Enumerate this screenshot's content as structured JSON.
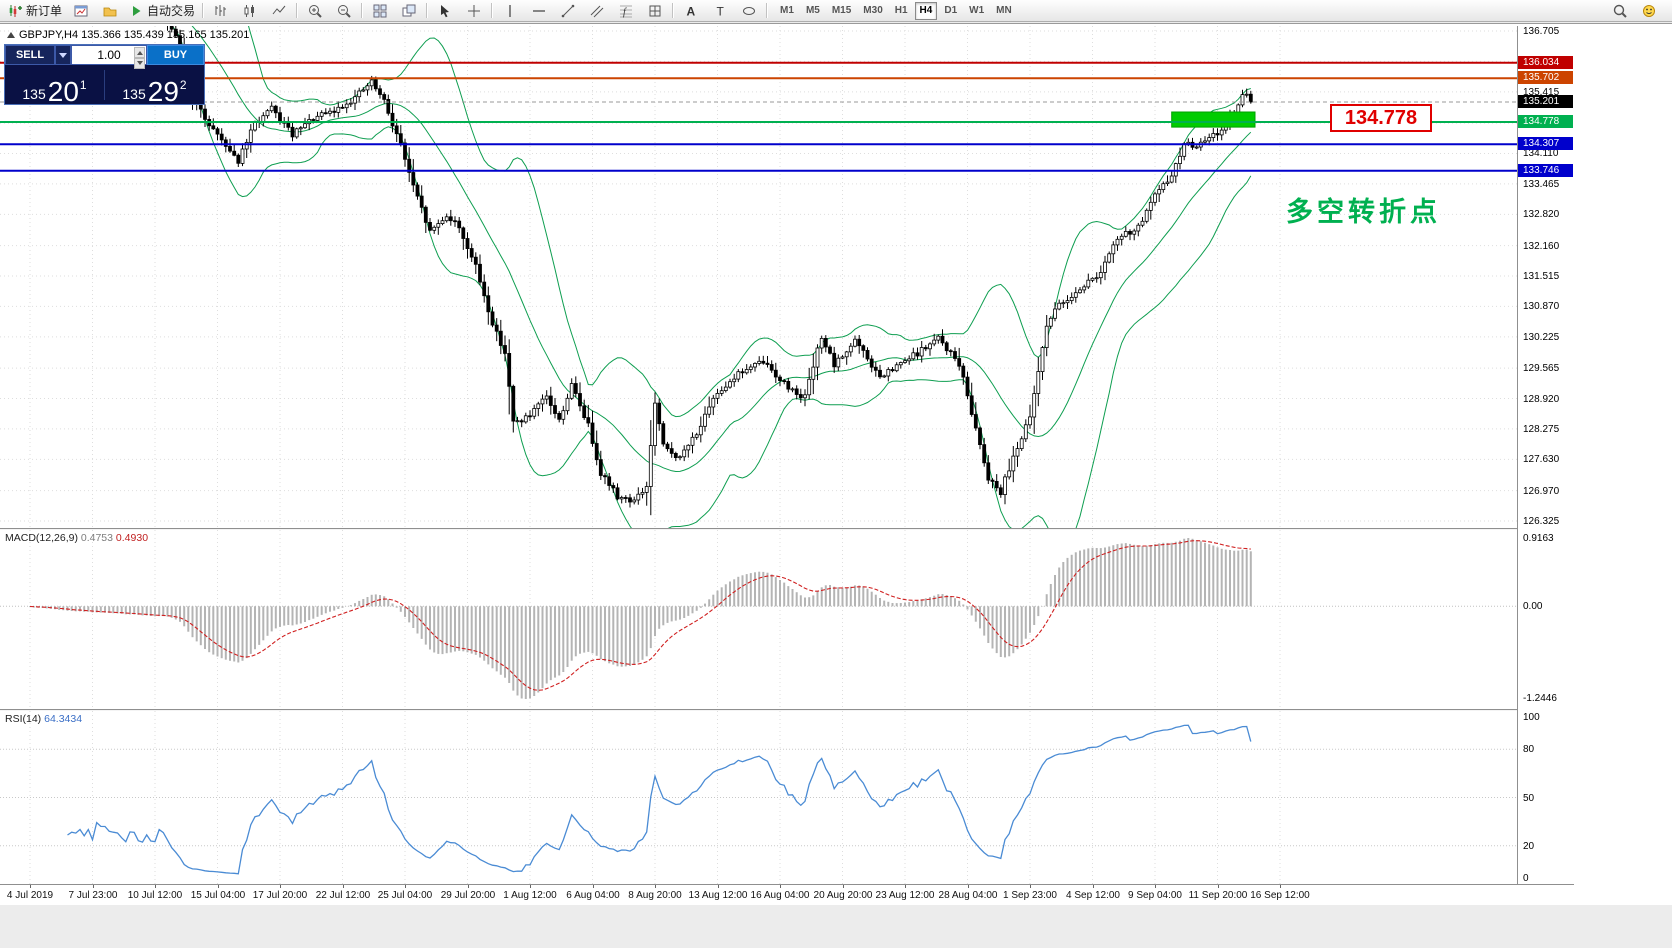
{
  "toolbar": {
    "items": [
      {
        "icon": "new-order",
        "label": "新订单",
        "name": "new-order-button"
      },
      {
        "icon": "chart-window",
        "name": "new-chart-button"
      },
      {
        "icon": "profile",
        "name": "profiles-button"
      },
      {
        "icon": "auto-trading",
        "label": "自动交易",
        "name": "auto-trading-button"
      },
      {
        "sep": true
      },
      {
        "icon": "bar-chart",
        "name": "bar-chart-button"
      },
      {
        "icon": "candle-chart",
        "name": "candlestick-chart-button"
      },
      {
        "icon": "line-chart",
        "name": "line-chart-button"
      },
      {
        "sep": true
      },
      {
        "icon": "zoom-in",
        "name": "zoom-in-button"
      },
      {
        "icon": "zoom-out",
        "name": "zoom-out-button"
      },
      {
        "sep": true
      },
      {
        "icon": "tile-windows",
        "name": "tile-windows-button"
      },
      {
        "icon": "arrange",
        "name": "cascade-windows-button"
      },
      {
        "sep": true
      },
      {
        "icon": "cursor",
        "name": "cursor-button"
      },
      {
        "icon": "crosshair",
        "name": "crosshair-button"
      },
      {
        "sep": true
      },
      {
        "icon": "vertical-line",
        "name": "vertical-line-button"
      },
      {
        "icon": "horizontal-line",
        "name": "horizontal-line-button"
      },
      {
        "icon": "trend-line",
        "name": "trendline-button"
      },
      {
        "icon": "channel",
        "name": "equidistant-channel-button"
      },
      {
        "icon": "fibonacci",
        "name": "fibonacci-button"
      },
      {
        "icon": "drawing-grid",
        "name": "drawing-tools-button"
      },
      {
        "sep": true
      },
      {
        "icon": "text",
        "name": "text-button"
      },
      {
        "icon": "text-label",
        "name": "text-label-button"
      },
      {
        "icon": "shapes",
        "name": "shapes-button"
      },
      {
        "sep": true
      }
    ],
    "timeframes": [
      "M1",
      "M5",
      "M15",
      "M30",
      "H1",
      "H4",
      "D1",
      "W1",
      "MN"
    ],
    "active_timeframe": "H4",
    "right_items": [
      {
        "icon": "search",
        "name": "search-button"
      },
      {
        "icon": "help-smiley",
        "name": "community-help-button"
      }
    ]
  },
  "trade_panel": {
    "sell_label": "SELL",
    "buy_label": "BUY",
    "volume": "1.00",
    "sell_price": {
      "main": "135",
      "pips": "20",
      "frac": "1"
    },
    "buy_price": {
      "main": "135",
      "pips": "29",
      "frac": "2"
    }
  },
  "chart": {
    "symbol_readout": "GBPJPY,H4  135.366 135.439 135.165 135.201",
    "annotation_price_label": "134.778",
    "annotation_text": "多空转折点",
    "colors": {
      "up_candle": "#ffffff",
      "down_candle": "#000000",
      "candle_stroke": "#000000",
      "bollinger": "#0e9e50",
      "macd_histogram": "#b4b4b4",
      "macd_signal": "#d02020",
      "rsi_line": "#4a8bd4",
      "grid": "#dedede",
      "highlight": "#00cc00",
      "annotation_green": "#00b050",
      "annotation_red": "#e00000",
      "current_price_tag": "#000000"
    }
  },
  "chart_data": {
    "type": "candlestick",
    "symbol": "GBPJPY",
    "timeframe": "H4",
    "ohlc": {
      "open": 135.366,
      "high": 135.439,
      "low": 135.165,
      "close": 135.201
    },
    "current_price": 135.201,
    "bars": 300,
    "y_axis": {
      "min": 126.325,
      "max": 136.705,
      "ticks": [
        136.705,
        135.415,
        134.11,
        133.465,
        132.82,
        132.16,
        131.515,
        130.87,
        130.225,
        129.565,
        128.92,
        128.275,
        127.63,
        126.97,
        126.325
      ],
      "hidden_grid": [
        136.06,
        134.755
      ]
    },
    "price_levels": [
      {
        "price": 136.034,
        "color": "#c00000"
      },
      {
        "price": 135.702,
        "color": "#cc4400"
      },
      {
        "price": 134.778,
        "color": "#00b050"
      },
      {
        "price": 134.307,
        "color": "#0000cc"
      },
      {
        "price": 133.746,
        "color": "#0000cc"
      }
    ],
    "highlight_rect": {
      "bar_start": 280,
      "bar_end": 300,
      "price_top": 134.99,
      "price_bottom": 134.67
    },
    "price_path": [
      [
        0,
        137.8
      ],
      [
        20,
        137.4
      ],
      [
        38,
        137.0
      ],
      [
        42,
        136.4
      ],
      [
        43,
        135.9
      ],
      [
        44,
        135.5
      ],
      [
        45,
        135.3
      ],
      [
        48,
        134.85
      ],
      [
        53,
        134.3
      ],
      [
        56,
        133.95
      ],
      [
        60,
        134.75
      ],
      [
        64,
        135.05
      ],
      [
        69,
        134.5
      ],
      [
        74,
        134.85
      ],
      [
        79,
        135.0
      ],
      [
        84,
        135.3
      ],
      [
        88,
        135.62
      ],
      [
        91,
        135.2
      ],
      [
        95,
        134.3
      ],
      [
        98,
        133.4
      ],
      [
        102,
        132.45
      ],
      [
        106,
        132.8
      ],
      [
        109,
        132.55
      ],
      [
        113,
        131.7
      ],
      [
        117,
        130.5
      ],
      [
        120,
        129.9
      ],
      [
        122,
        128.4
      ],
      [
        126,
        128.55
      ],
      [
        130,
        128.95
      ],
      [
        133,
        128.45
      ],
      [
        136,
        129.2
      ],
      [
        140,
        128.35
      ],
      [
        143,
        127.35
      ],
      [
        147,
        126.85
      ],
      [
        151,
        126.75
      ],
      [
        154,
        127.05
      ],
      [
        156,
        128.8
      ],
      [
        158,
        127.9
      ],
      [
        162,
        127.65
      ],
      [
        167,
        128.35
      ],
      [
        171,
        129.05
      ],
      [
        176,
        129.45
      ],
      [
        182,
        129.7
      ],
      [
        188,
        129.15
      ],
      [
        192,
        128.95
      ],
      [
        196,
        130.25
      ],
      [
        199,
        129.6
      ],
      [
        204,
        130.15
      ],
      [
        210,
        129.35
      ],
      [
        215,
        129.65
      ],
      [
        221,
        130.0
      ],
      [
        224,
        130.2
      ],
      [
        229,
        129.65
      ],
      [
        233,
        128.3
      ],
      [
        236,
        127.25
      ],
      [
        239,
        126.95
      ],
      [
        242,
        127.7
      ],
      [
        246,
        128.5
      ],
      [
        250,
        130.5
      ],
      [
        253,
        130.9
      ],
      [
        258,
        131.25
      ],
      [
        263,
        131.6
      ],
      [
        267,
        132.3
      ],
      [
        272,
        132.55
      ],
      [
        276,
        133.2
      ],
      [
        280,
        133.65
      ],
      [
        283,
        134.3
      ],
      [
        287,
        134.3
      ],
      [
        291,
        134.55
      ],
      [
        295,
        134.95
      ],
      [
        297,
        135.3
      ],
      [
        298,
        135.38
      ],
      [
        299,
        135.2
      ]
    ],
    "x_ticks": {
      "start_bar": 6,
      "step": 15,
      "labels": [
        "4 Jul 2019",
        "7 Jul 23:00",
        "10 Jul 12:00",
        "15 Jul 04:00",
        "17 Jul 20:00",
        "22 Jul 12:00",
        "25 Jul 04:00",
        "29 Jul 20:00",
        "1 Aug 12:00",
        "6 Aug 04:00",
        "8 Aug 20:00",
        "13 Aug 12:00",
        "16 Aug 04:00",
        "20 Aug 20:00",
        "23 Aug 12:00",
        "28 Aug 04:00",
        "1 Sep 23:00",
        "4 Sep 12:00",
        "9 Sep 04:00",
        "11 Sep 20:00",
        "16 Sep 12:00"
      ]
    },
    "indicators": {
      "bollinger": {
        "period": 20,
        "deviation": 2
      },
      "macd": {
        "label": "MACD(12,26,9)",
        "value_main": "0.4753",
        "value_signal": "0.4930",
        "scale_top": "0.9163",
        "scale_zero": "0.00",
        "scale_bottom": "-1.2446",
        "scale_max": 0.9163,
        "scale_min": -1.2446
      },
      "rsi": {
        "label": "RSI(14)",
        "value": "64.3434",
        "scale_labels": [
          100,
          80,
          50,
          20,
          0
        ],
        "levels": [
          80,
          50,
          20
        ]
      }
    }
  }
}
